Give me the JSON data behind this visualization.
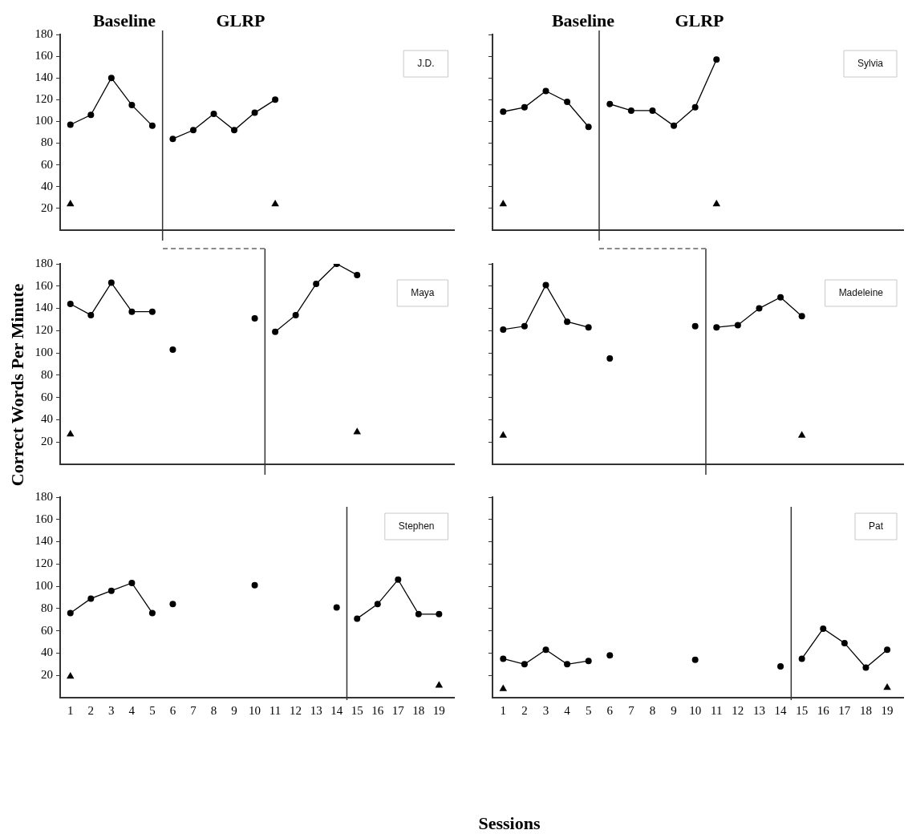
{
  "chart_data": [
    {
      "type": "line",
      "title": "J.D.",
      "annotations": [
        "Baseline",
        "GLRP"
      ],
      "xlim": [
        0.5,
        19.75
      ],
      "ylim": [
        0,
        180
      ],
      "yticks": [
        20,
        40,
        60,
        80,
        100,
        120,
        140,
        160,
        180
      ],
      "tick_labels": "y",
      "marker": "circle",
      "line_style": "solid",
      "ref_lines": [
        {
          "axis": "x",
          "value": 5.5
        }
      ],
      "series": [
        {
          "type": "line",
          "color": "#000000",
          "x": [
            1,
            2,
            3,
            4,
            5
          ],
          "values": [
            97,
            106,
            140,
            115,
            96
          ]
        },
        {
          "type": "line",
          "color": "#000000",
          "x": [
            6,
            7,
            8,
            9,
            10,
            11
          ],
          "values": [
            84,
            92,
            107,
            92,
            108,
            120
          ]
        },
        {
          "type": "scatter",
          "marker": "triangle",
          "color": "#000000",
          "x": [
            1,
            11
          ],
          "values": [
            24,
            24
          ]
        }
      ]
    },
    {
      "type": "line",
      "title": "Sylvia",
      "annotations": [
        "Baseline",
        "GLRP"
      ],
      "xlim": [
        0.5,
        19.75
      ],
      "ylim": [
        0,
        180
      ],
      "yticks": [
        {
          "value": 20,
          "label": null
        },
        {
          "value": 40,
          "label": null
        },
        {
          "value": 60,
          "label": null
        },
        {
          "value": 80,
          "label": null
        },
        {
          "value": 100,
          "label": null
        },
        {
          "value": 120,
          "label": null
        },
        {
          "value": 140,
          "label": null
        },
        {
          "value": 160,
          "label": null
        },
        {
          "value": 180,
          "label": null
        }
      ],
      "tick_labels": false,
      "marker": "circle",
      "line_style": "solid",
      "ref_lines": [
        {
          "axis": "x",
          "value": 5.5
        }
      ],
      "series": [
        {
          "type": "line",
          "color": "#000000",
          "x": [
            1,
            2,
            3,
            4,
            5
          ],
          "values": [
            109,
            113,
            128,
            118,
            95
          ]
        },
        {
          "type": "line",
          "color": "#000000",
          "x": [
            6,
            7,
            8,
            9,
            10,
            11
          ],
          "values": [
            116,
            110,
            110,
            96,
            113,
            157
          ]
        },
        {
          "type": "scatter",
          "marker": "triangle",
          "color": "#000000",
          "x": [
            1,
            11
          ],
          "values": [
            24,
            24
          ]
        }
      ]
    },
    {
      "type": "line",
      "title": "Maya",
      "ylabel": "Correct Words Per Minute",
      "xlim": [
        0.5,
        19.75
      ],
      "ylim": [
        0,
        180
      ],
      "yticks": [
        20,
        40,
        60,
        80,
        100,
        120,
        140,
        160,
        180
      ],
      "tick_labels": "y",
      "marker": "circle",
      "line_style": "solid",
      "ref_lines": [
        {
          "axis": "x",
          "value": 10.5
        }
      ],
      "series": [
        {
          "type": "line",
          "color": "#000000",
          "x": [
            1,
            2,
            3,
            4,
            5
          ],
          "values": [
            144,
            134,
            163,
            137,
            137
          ]
        },
        {
          "type": "scatter",
          "color": "#000000",
          "x": [
            6,
            10
          ],
          "values": [
            103,
            131
          ]
        },
        {
          "type": "line",
          "color": "#000000",
          "x": [
            11,
            12,
            13,
            14,
            15
          ],
          "values": [
            119,
            134,
            162,
            180,
            170
          ]
        },
        {
          "type": "scatter",
          "marker": "triangle",
          "color": "#000000",
          "x": [
            1,
            15
          ],
          "values": [
            27,
            29
          ]
        }
      ]
    },
    {
      "type": "line",
      "title": "Madeleine",
      "xlim": [
        0.5,
        19.75
      ],
      "ylim": [
        0,
        180
      ],
      "yticks": [
        {
          "value": 20,
          "label": null
        },
        {
          "value": 40,
          "label": null
        },
        {
          "value": 60,
          "label": null
        },
        {
          "value": 80,
          "label": null
        },
        {
          "value": 100,
          "label": null
        },
        {
          "value": 120,
          "label": null
        },
        {
          "value": 140,
          "label": null
        },
        {
          "value": 160,
          "label": null
        },
        {
          "value": 180,
          "label": null
        }
      ],
      "tick_labels": false,
      "marker": "circle",
      "line_style": "solid",
      "ref_lines": [
        {
          "axis": "x",
          "value": 10.5
        }
      ],
      "series": [
        {
          "type": "line",
          "color": "#000000",
          "x": [
            1,
            2,
            3,
            4,
            5
          ],
          "values": [
            121,
            124,
            161,
            128,
            123
          ]
        },
        {
          "type": "scatter",
          "color": "#000000",
          "x": [
            6,
            10
          ],
          "values": [
            95,
            124
          ]
        },
        {
          "type": "line",
          "color": "#000000",
          "x": [
            11,
            12,
            13,
            14,
            15
          ],
          "values": [
            123,
            125,
            140,
            150,
            133
          ]
        },
        {
          "type": "scatter",
          "marker": "triangle",
          "color": "#000000",
          "x": [
            1,
            15
          ],
          "values": [
            26,
            26
          ]
        }
      ]
    },
    {
      "type": "line",
      "title": "Stephen",
      "xlabel": "Sessions",
      "xlim": [
        0.5,
        19.75
      ],
      "ylim": [
        0,
        180
      ],
      "xticks": [
        1,
        2,
        3,
        4,
        5,
        6,
        7,
        8,
        9,
        10,
        11,
        12,
        13,
        14,
        15,
        16,
        17,
        18,
        19
      ],
      "yticks": [
        20,
        40,
        60,
        80,
        100,
        120,
        140,
        160,
        180
      ],
      "marker": "circle",
      "line_style": "solid",
      "ref_lines": [
        {
          "axis": "x",
          "value": 14.5
        }
      ],
      "series": [
        {
          "type": "line",
          "color": "#000000",
          "x": [
            1,
            2,
            3,
            4,
            5
          ],
          "values": [
            76,
            89,
            96,
            103,
            76
          ]
        },
        {
          "type": "scatter",
          "color": "#000000",
          "x": [
            6,
            10,
            14
          ],
          "values": [
            84,
            101,
            81
          ]
        },
        {
          "type": "line",
          "color": "#000000",
          "x": [
            15,
            16,
            17,
            18,
            19
          ],
          "values": [
            71,
            84,
            106,
            75,
            75
          ]
        },
        {
          "type": "scatter",
          "marker": "triangle",
          "color": "#000000",
          "x": [
            1,
            19
          ],
          "values": [
            19,
            11
          ]
        }
      ]
    },
    {
      "type": "line",
      "title": "Pat",
      "xlim": [
        0.5,
        19.75
      ],
      "ylim": [
        0,
        180
      ],
      "xticks": [
        1,
        2,
        3,
        4,
        5,
        6,
        7,
        8,
        9,
        10,
        11,
        12,
        13,
        14,
        15,
        16,
        17,
        18,
        19
      ],
      "yticks": [
        {
          "value": 20,
          "label": null
        },
        {
          "value": 40,
          "label": null
        },
        {
          "value": 60,
          "label": null
        },
        {
          "value": 80,
          "label": null
        },
        {
          "value": 100,
          "label": null
        },
        {
          "value": 120,
          "label": null
        },
        {
          "value": 140,
          "label": null
        },
        {
          "value": 160,
          "label": null
        },
        {
          "value": 180,
          "label": null
        }
      ],
      "tick_labels": "x",
      "marker": "circle",
      "line_style": "solid",
      "ref_lines": [
        {
          "axis": "x",
          "value": 14.5
        }
      ],
      "series": [
        {
          "type": "line",
          "color": "#000000",
          "x": [
            1,
            2,
            3,
            4,
            5
          ],
          "values": [
            35,
            30,
            43,
            30,
            33
          ]
        },
        {
          "type": "scatter",
          "color": "#000000",
          "x": [
            6,
            10,
            14
          ],
          "values": [
            38,
            34,
            28
          ]
        },
        {
          "type": "line",
          "color": "#000000",
          "x": [
            15,
            16,
            17,
            18,
            19
          ],
          "values": [
            35,
            62,
            49,
            27,
            43
          ]
        },
        {
          "type": "scatter",
          "marker": "triangle",
          "color": "#000000",
          "x": [
            1,
            19
          ],
          "values": [
            8,
            9
          ]
        }
      ]
    }
  ]
}
